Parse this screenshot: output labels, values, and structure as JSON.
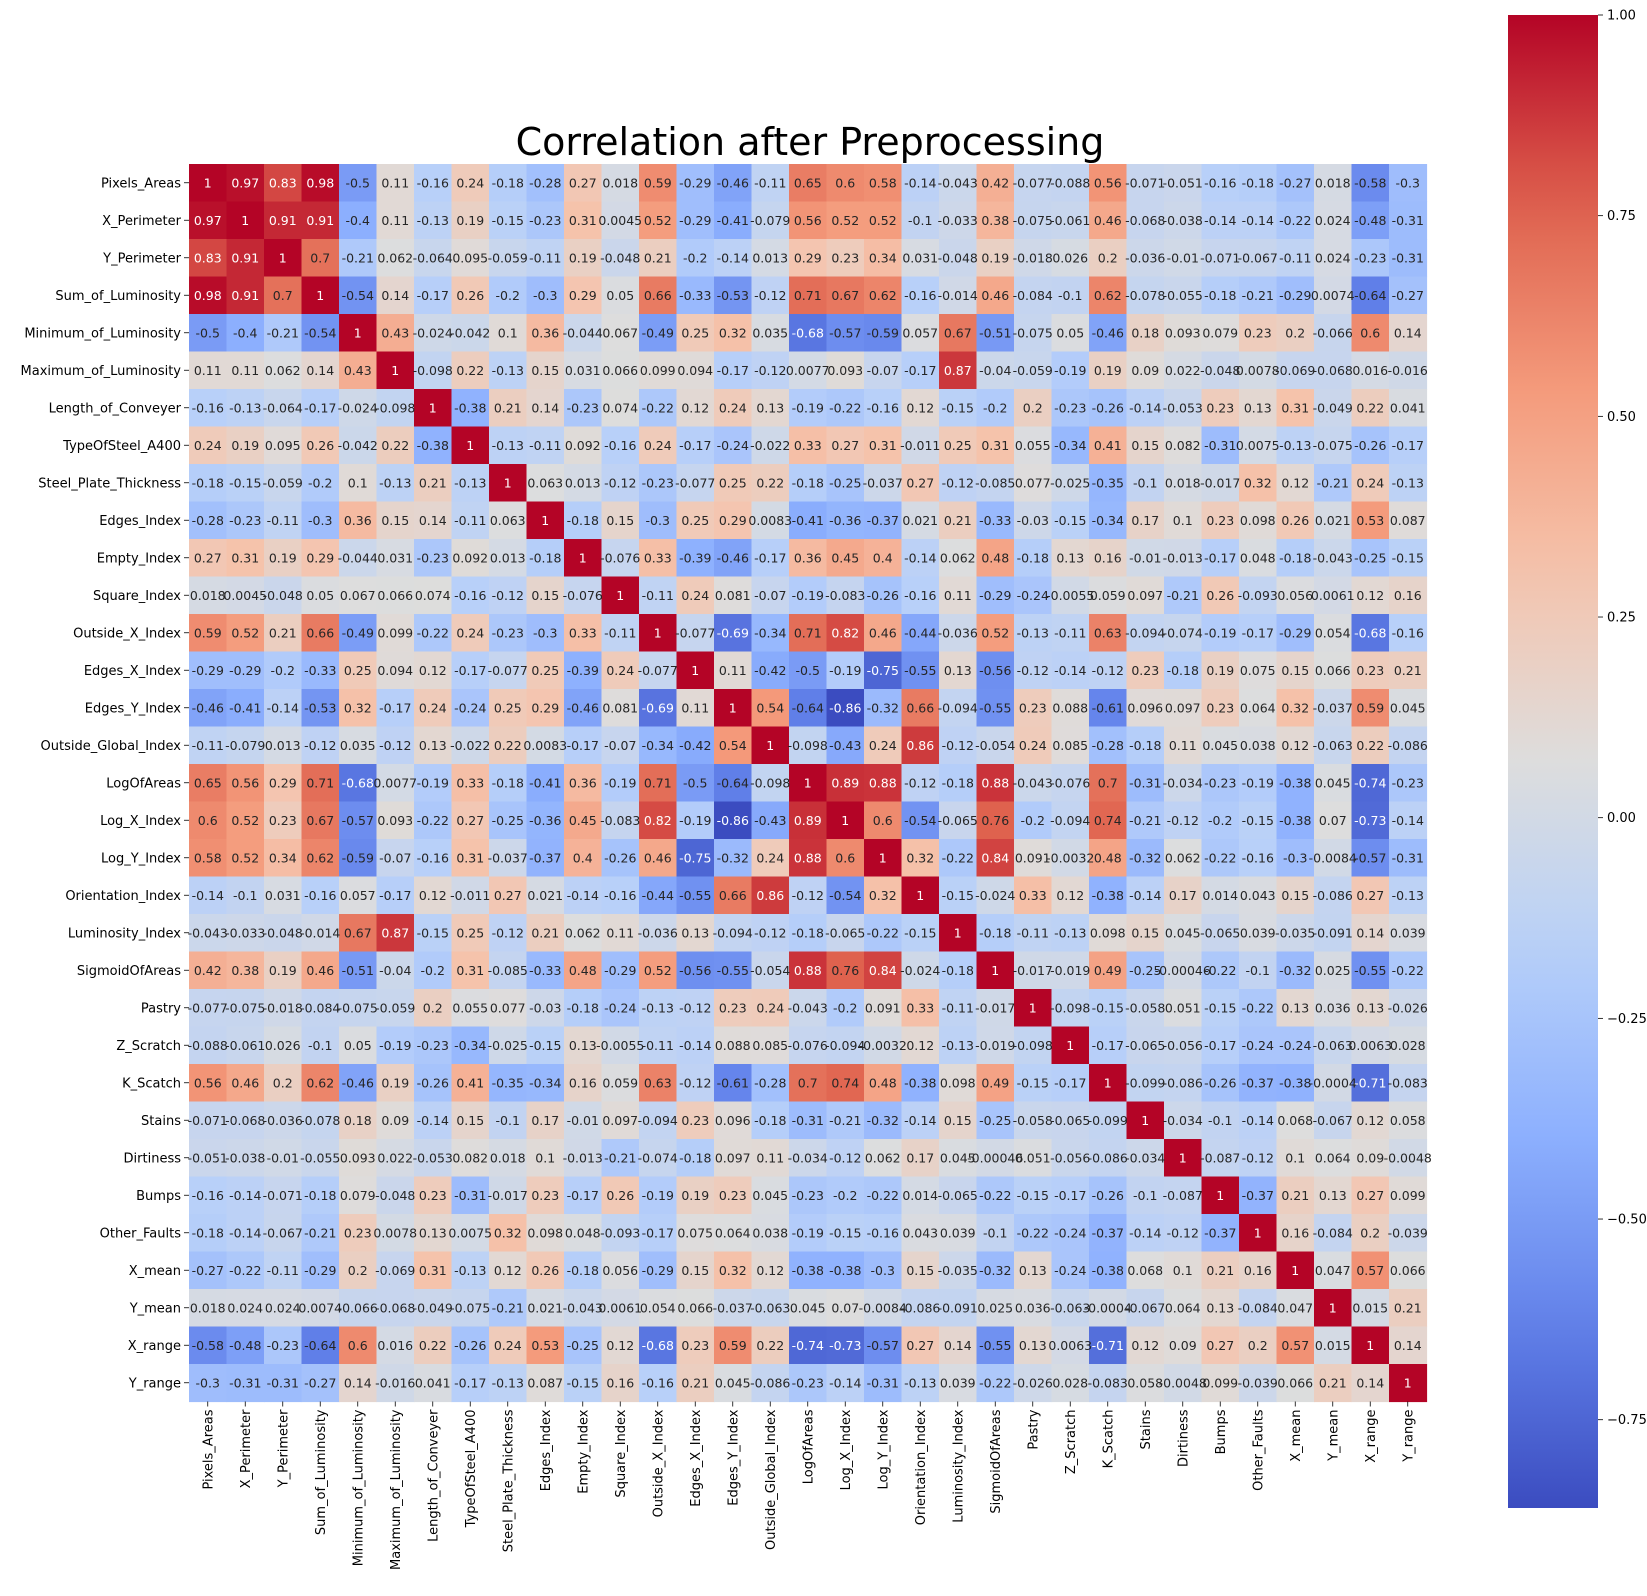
{
  "chart_data": {
    "type": "heatmap",
    "title": "Correlation after Preprocessing",
    "labels": [
      "Pixels_Areas",
      "X_Perimeter",
      "Y_Perimeter",
      "Sum_of_Luminosity",
      "Minimum_of_Luminosity",
      "Maximum_of_Luminosity",
      "Length_of_Conveyer",
      "TypeOfSteel_A400",
      "Steel_Plate_Thickness",
      "Edges_Index",
      "Empty_Index",
      "Square_Index",
      "Outside_X_Index",
      "Edges_X_Index",
      "Edges_Y_Index",
      "Outside_Global_Index",
      "LogOfAreas",
      "Log_X_Index",
      "Log_Y_Index",
      "Orientation_Index",
      "Luminosity_Index",
      "SigmoidOfAreas",
      "Pastry",
      "Z_Scratch",
      "K_Scatch",
      "Stains",
      "Dirtiness",
      "Bumps",
      "Other_Faults",
      "X_mean",
      "Y_mean",
      "X_range",
      "Y_range"
    ],
    "values": [
      [
        1,
        0.97,
        0.83,
        0.98,
        -0.5,
        0.11,
        -0.16,
        0.24,
        -0.18,
        -0.28,
        0.27,
        0.018,
        0.59,
        -0.29,
        -0.46,
        -0.11,
        0.65,
        0.6,
        0.58,
        -0.14,
        -0.043,
        0.42,
        -0.077,
        -0.088,
        0.56,
        -0.071,
        -0.051,
        -0.16,
        -0.18,
        -0.27,
        0.018,
        -0.58,
        -0.3
      ],
      [
        0.97,
        1,
        0.91,
        0.91,
        -0.4,
        0.11,
        -0.13,
        0.19,
        -0.15,
        -0.23,
        0.31,
        0.0045,
        0.52,
        -0.29,
        -0.41,
        -0.079,
        0.56,
        0.52,
        0.52,
        -0.1,
        -0.033,
        0.38,
        -0.075,
        -0.061,
        0.46,
        -0.068,
        -0.038,
        -0.14,
        -0.14,
        -0.22,
        0.024,
        -0.48,
        -0.31
      ],
      [
        0.83,
        0.91,
        1,
        0.7,
        -0.21,
        0.062,
        -0.064,
        0.095,
        -0.059,
        -0.11,
        0.19,
        -0.048,
        0.21,
        -0.2,
        -0.14,
        0.013,
        0.29,
        0.23,
        0.34,
        0.031,
        -0.048,
        0.19,
        -0.018,
        0.026,
        0.2,
        -0.036,
        -0.01,
        -0.071,
        -0.067,
        -0.11,
        0.024,
        -0.23,
        -0.31
      ],
      [
        0.98,
        0.91,
        0.7,
        1,
        -0.54,
        0.14,
        -0.17,
        0.26,
        -0.2,
        -0.3,
        0.29,
        0.05,
        0.66,
        -0.33,
        -0.53,
        -0.12,
        0.71,
        0.67,
        0.62,
        -0.16,
        -0.014,
        0.46,
        -0.084,
        -0.1,
        0.62,
        -0.078,
        -0.055,
        -0.18,
        -0.21,
        -0.29,
        0.0074,
        -0.64,
        -0.27
      ],
      [
        -0.5,
        -0.4,
        -0.21,
        -0.54,
        1,
        0.43,
        -0.024,
        -0.042,
        0.1,
        0.36,
        -0.044,
        0.067,
        -0.49,
        0.25,
        0.32,
        0.035,
        -0.68,
        -0.57,
        -0.59,
        0.057,
        0.67,
        -0.51,
        -0.075,
        0.05,
        -0.46,
        0.18,
        0.093,
        0.079,
        0.23,
        0.2,
        -0.066,
        0.6,
        0.14
      ],
      [
        0.11,
        0.11,
        0.062,
        0.14,
        0.43,
        1,
        -0.098,
        0.22,
        -0.13,
        0.15,
        0.031,
        0.066,
        0.099,
        0.094,
        -0.17,
        -0.12,
        0.0077,
        0.093,
        -0.07,
        -0.17,
        0.87,
        -0.04,
        -0.059,
        -0.19,
        0.19,
        0.09,
        0.022,
        -0.048,
        0.0078,
        -0.069,
        -0.068,
        0.016,
        -0.016
      ],
      [
        -0.16,
        -0.13,
        -0.064,
        -0.17,
        -0.024,
        -0.098,
        1,
        -0.38,
        0.21,
        0.14,
        -0.23,
        0.074,
        -0.22,
        0.12,
        0.24,
        0.13,
        -0.19,
        -0.22,
        -0.16,
        0.12,
        -0.15,
        -0.2,
        0.2,
        -0.23,
        -0.26,
        -0.14,
        -0.053,
        0.23,
        0.13,
        0.31,
        -0.049,
        0.22,
        0.041
      ],
      [
        0.24,
        0.19,
        0.095,
        0.26,
        -0.042,
        0.22,
        -0.38,
        1,
        -0.13,
        -0.11,
        0.092,
        -0.16,
        0.24,
        -0.17,
        -0.24,
        -0.022,
        0.33,
        0.27,
        0.31,
        -0.011,
        0.25,
        0.31,
        0.055,
        -0.34,
        0.41,
        0.15,
        0.082,
        -0.31,
        0.0075,
        -0.13,
        -0.075,
        -0.26,
        -0.17
      ],
      [
        -0.18,
        -0.15,
        -0.059,
        -0.2,
        0.1,
        -0.13,
        0.21,
        -0.13,
        1,
        0.063,
        0.013,
        -0.12,
        -0.23,
        -0.077,
        0.25,
        0.22,
        -0.18,
        -0.25,
        -0.037,
        0.27,
        -0.12,
        -0.085,
        0.077,
        -0.025,
        -0.35,
        -0.1,
        0.018,
        -0.017,
        0.32,
        0.12,
        -0.21,
        0.24,
        -0.13
      ],
      [
        -0.28,
        -0.23,
        -0.11,
        -0.3,
        0.36,
        0.15,
        0.14,
        -0.11,
        0.063,
        1,
        -0.18,
        0.15,
        -0.3,
        0.25,
        0.29,
        0.0083,
        -0.41,
        -0.36,
        -0.37,
        0.021,
        0.21,
        -0.33,
        -0.03,
        -0.15,
        -0.34,
        0.17,
        0.1,
        0.23,
        0.098,
        0.26,
        0.021,
        0.53,
        0.087
      ],
      [
        0.27,
        0.31,
        0.19,
        0.29,
        -0.044,
        0.031,
        -0.23,
        0.092,
        0.013,
        -0.18,
        1,
        -0.076,
        0.33,
        -0.39,
        -0.46,
        -0.17,
        0.36,
        0.45,
        0.4,
        -0.14,
        0.062,
        0.48,
        -0.18,
        0.13,
        0.16,
        -0.01,
        -0.013,
        -0.17,
        0.048,
        -0.18,
        -0.043,
        -0.25,
        -0.15
      ],
      [
        0.018,
        0.0045,
        -0.048,
        0.05,
        0.067,
        0.066,
        0.074,
        -0.16,
        -0.12,
        0.15,
        -0.076,
        1,
        -0.11,
        0.24,
        0.081,
        -0.07,
        -0.19,
        -0.083,
        -0.26,
        -0.16,
        0.11,
        -0.29,
        -0.24,
        -0.0055,
        0.059,
        0.097,
        -0.21,
        0.26,
        -0.093,
        0.056,
        0.0061,
        0.12,
        0.16
      ],
      [
        0.59,
        0.52,
        0.21,
        0.66,
        -0.49,
        0.099,
        -0.22,
        0.24,
        -0.23,
        -0.3,
        0.33,
        -0.11,
        1,
        -0.077,
        -0.69,
        -0.34,
        0.71,
        0.82,
        0.46,
        -0.44,
        -0.036,
        0.52,
        -0.13,
        -0.11,
        0.63,
        -0.094,
        -0.074,
        -0.19,
        -0.17,
        -0.29,
        0.054,
        -0.68,
        -0.16
      ],
      [
        -0.29,
        -0.29,
        -0.2,
        -0.33,
        0.25,
        0.094,
        0.12,
        -0.17,
        -0.077,
        0.25,
        -0.39,
        0.24,
        -0.077,
        1,
        0.11,
        -0.42,
        -0.5,
        -0.19,
        -0.75,
        -0.55,
        0.13,
        -0.56,
        -0.12,
        -0.14,
        -0.12,
        0.23,
        -0.18,
        0.19,
        0.075,
        0.15,
        0.066,
        0.23,
        0.21
      ],
      [
        -0.46,
        -0.41,
        -0.14,
        -0.53,
        0.32,
        -0.17,
        0.24,
        -0.24,
        0.25,
        0.29,
        -0.46,
        0.081,
        -0.69,
        0.11,
        1,
        0.54,
        -0.64,
        -0.86,
        -0.32,
        0.66,
        -0.094,
        -0.55,
        0.23,
        0.088,
        -0.61,
        0.096,
        0.097,
        0.23,
        0.064,
        0.32,
        -0.037,
        0.59,
        0.045
      ],
      [
        -0.11,
        -0.079,
        0.013,
        -0.12,
        0.035,
        -0.12,
        0.13,
        -0.022,
        0.22,
        0.0083,
        -0.17,
        -0.07,
        -0.34,
        -0.42,
        0.54,
        1,
        -0.098,
        -0.43,
        0.24,
        0.86,
        -0.12,
        -0.054,
        0.24,
        0.085,
        -0.28,
        -0.18,
        0.11,
        0.045,
        0.038,
        0.12,
        -0.063,
        0.22,
        -0.086
      ],
      [
        0.65,
        0.56,
        0.29,
        0.71,
        -0.68,
        0.0077,
        -0.19,
        0.33,
        -0.18,
        -0.41,
        0.36,
        -0.19,
        0.71,
        -0.5,
        -0.64,
        -0.098,
        1,
        0.89,
        0.88,
        -0.12,
        -0.18,
        0.88,
        -0.043,
        -0.076,
        0.7,
        -0.31,
        -0.034,
        -0.23,
        -0.19,
        -0.38,
        0.045,
        -0.74,
        -0.23
      ],
      [
        0.6,
        0.52,
        0.23,
        0.67,
        -0.57,
        0.093,
        -0.22,
        0.27,
        -0.25,
        -0.36,
        0.45,
        -0.083,
        0.82,
        -0.19,
        -0.86,
        -0.43,
        0.89,
        1,
        0.6,
        -0.54,
        -0.065,
        0.76,
        -0.2,
        -0.094,
        0.74,
        -0.21,
        -0.12,
        -0.2,
        -0.15,
        -0.38,
        0.07,
        -0.73,
        -0.14
      ],
      [
        0.58,
        0.52,
        0.34,
        0.62,
        -0.59,
        -0.07,
        -0.16,
        0.31,
        -0.037,
        -0.37,
        0.4,
        -0.26,
        0.46,
        -0.75,
        -0.32,
        0.24,
        0.88,
        0.6,
        1,
        0.32,
        -0.22,
        0.84,
        0.091,
        -0.0032,
        0.48,
        -0.32,
        0.062,
        -0.22,
        -0.16,
        -0.3,
        -0.0084,
        -0.57,
        -0.31
      ],
      [
        -0.14,
        -0.1,
        0.031,
        -0.16,
        0.057,
        -0.17,
        0.12,
        -0.011,
        0.27,
        0.021,
        -0.14,
        -0.16,
        -0.44,
        -0.55,
        0.66,
        0.86,
        -0.12,
        -0.54,
        0.32,
        1,
        -0.15,
        -0.024,
        0.33,
        0.12,
        -0.38,
        -0.14,
        0.17,
        0.014,
        0.043,
        0.15,
        -0.086,
        0.27,
        -0.13
      ],
      [
        -0.043,
        -0.033,
        -0.048,
        -0.014,
        0.67,
        0.87,
        -0.15,
        0.25,
        -0.12,
        0.21,
        0.062,
        0.11,
        -0.036,
        0.13,
        -0.094,
        -0.12,
        -0.18,
        -0.065,
        -0.22,
        -0.15,
        1,
        -0.18,
        -0.11,
        -0.13,
        0.098,
        0.15,
        0.045,
        -0.065,
        0.039,
        -0.035,
        -0.091,
        0.14,
        0.039
      ],
      [
        0.42,
        0.38,
        0.19,
        0.46,
        -0.51,
        -0.04,
        -0.2,
        0.31,
        -0.085,
        -0.33,
        0.48,
        -0.29,
        0.52,
        -0.56,
        -0.55,
        -0.054,
        0.88,
        0.76,
        0.84,
        -0.024,
        -0.18,
        1,
        -0.017,
        -0.019,
        0.49,
        -0.25,
        -0.00046,
        -0.22,
        -0.1,
        -0.32,
        0.025,
        -0.55,
        -0.22
      ],
      [
        -0.077,
        -0.075,
        -0.018,
        -0.084,
        -0.075,
        -0.059,
        0.2,
        0.055,
        0.077,
        -0.03,
        -0.18,
        -0.24,
        -0.13,
        -0.12,
        0.23,
        0.24,
        -0.043,
        -0.2,
        0.091,
        0.33,
        -0.11,
        -0.017,
        1,
        -0.098,
        -0.15,
        -0.058,
        0.051,
        -0.15,
        -0.22,
        0.13,
        0.036,
        0.13,
        -0.026
      ],
      [
        -0.088,
        -0.061,
        0.026,
        -0.1,
        0.05,
        -0.19,
        -0.23,
        -0.34,
        -0.025,
        -0.15,
        0.13,
        -0.0055,
        -0.11,
        -0.14,
        0.088,
        0.085,
        -0.076,
        -0.094,
        -0.0032,
        0.12,
        -0.13,
        -0.019,
        -0.098,
        1,
        -0.17,
        -0.065,
        -0.056,
        -0.17,
        -0.24,
        -0.24,
        -0.063,
        0.0063,
        0.028
      ],
      [
        0.56,
        0.46,
        0.2,
        0.62,
        -0.46,
        0.19,
        -0.26,
        0.41,
        -0.35,
        -0.34,
        0.16,
        0.059,
        0.63,
        -0.12,
        -0.61,
        -0.28,
        0.7,
        0.74,
        0.48,
        -0.38,
        0.098,
        0.49,
        -0.15,
        -0.17,
        1,
        -0.099,
        -0.086,
        -0.26,
        -0.37,
        -0.38,
        -0.0004,
        -0.71,
        -0.083
      ],
      [
        -0.071,
        -0.068,
        -0.036,
        -0.078,
        0.18,
        0.09,
        -0.14,
        0.15,
        -0.1,
        0.17,
        -0.01,
        0.097,
        -0.094,
        0.23,
        0.096,
        -0.18,
        -0.31,
        -0.21,
        -0.32,
        -0.14,
        0.15,
        -0.25,
        -0.058,
        -0.065,
        -0.099,
        1,
        -0.034,
        -0.1,
        -0.14,
        0.068,
        -0.067,
        0.12,
        0.058
      ],
      [
        -0.051,
        -0.038,
        -0.01,
        -0.055,
        0.093,
        0.022,
        -0.053,
        0.082,
        0.018,
        0.1,
        -0.013,
        -0.21,
        -0.074,
        -0.18,
        0.097,
        0.11,
        -0.034,
        -0.12,
        0.062,
        0.17,
        0.045,
        -0.00046,
        0.051,
        -0.056,
        -0.086,
        -0.034,
        1,
        -0.087,
        -0.12,
        0.1,
        0.064,
        0.09,
        -0.0048
      ],
      [
        -0.16,
        -0.14,
        -0.071,
        -0.18,
        0.079,
        -0.048,
        0.23,
        -0.31,
        -0.017,
        0.23,
        -0.17,
        0.26,
        -0.19,
        0.19,
        0.23,
        0.045,
        -0.23,
        -0.2,
        -0.22,
        0.014,
        -0.065,
        -0.22,
        -0.15,
        -0.17,
        -0.26,
        -0.1,
        -0.087,
        1,
        -0.37,
        0.21,
        0.13,
        0.27,
        0.099
      ],
      [
        -0.18,
        -0.14,
        -0.067,
        -0.21,
        0.23,
        0.0078,
        0.13,
        0.0075,
        0.32,
        0.098,
        0.048,
        -0.093,
        -0.17,
        0.075,
        0.064,
        0.038,
        -0.19,
        -0.15,
        -0.16,
        0.043,
        0.039,
        -0.1,
        -0.22,
        -0.24,
        -0.37,
        -0.14,
        -0.12,
        -0.37,
        1,
        0.16,
        -0.084,
        0.2,
        -0.039
      ],
      [
        -0.27,
        -0.22,
        -0.11,
        -0.29,
        0.2,
        -0.069,
        0.31,
        -0.13,
        0.12,
        0.26,
        -0.18,
        0.056,
        -0.29,
        0.15,
        0.32,
        0.12,
        -0.38,
        -0.38,
        -0.3,
        0.15,
        -0.035,
        -0.32,
        0.13,
        -0.24,
        -0.38,
        0.068,
        0.1,
        0.21,
        0.16,
        1,
        0.047,
        0.57,
        0.066
      ],
      [
        0.018,
        0.024,
        0.024,
        0.0074,
        -0.066,
        -0.068,
        -0.049,
        -0.075,
        -0.21,
        0.021,
        -0.043,
        0.0061,
        0.054,
        0.066,
        -0.037,
        -0.063,
        0.045,
        0.07,
        -0.0084,
        -0.086,
        -0.091,
        0.025,
        0.036,
        -0.063,
        -0.0004,
        -0.067,
        0.064,
        0.13,
        -0.084,
        0.047,
        1,
        0.015,
        0.21
      ],
      [
        -0.58,
        -0.48,
        -0.23,
        -0.64,
        0.6,
        0.016,
        0.22,
        -0.26,
        0.24,
        0.53,
        -0.25,
        0.12,
        -0.68,
        0.23,
        0.59,
        0.22,
        -0.74,
        -0.73,
        -0.57,
        0.27,
        0.14,
        -0.55,
        0.13,
        0.0063,
        -0.71,
        0.12,
        0.09,
        0.27,
        0.2,
        0.57,
        0.015,
        1,
        0.14
      ],
      [
        -0.3,
        -0.31,
        -0.31,
        -0.27,
        0.14,
        -0.016,
        0.041,
        -0.17,
        -0.13,
        0.087,
        -0.15,
        0.16,
        -0.16,
        0.21,
        0.045,
        -0.086,
        -0.23,
        -0.14,
        -0.31,
        -0.13,
        0.039,
        -0.22,
        -0.026,
        0.028,
        -0.083,
        0.058,
        -0.0048,
        0.099,
        -0.039,
        0.066,
        0.21,
        0.14,
        1
      ]
    ],
    "colorbar": {
      "colormap": "coolwarm",
      "range": [
        -0.86,
        1.0
      ],
      "ticks": [
        1.0,
        0.75,
        0.5,
        0.25,
        0.0,
        -0.25,
        -0.5,
        -0.75
      ],
      "tick_labels": [
        "1.00",
        "0.75",
        "0.50",
        "0.25",
        "0.00",
        "−0.25",
        "−0.50",
        "−0.75"
      ]
    }
  }
}
